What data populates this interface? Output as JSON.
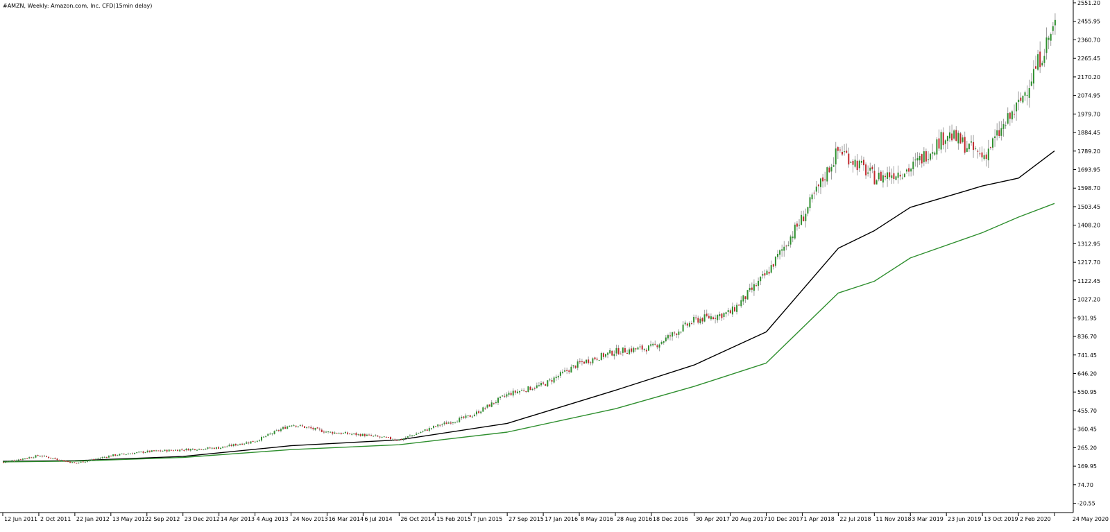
{
  "chart_data": {
    "type": "candlestick",
    "title": "#AMZN, Weekly:  Amazon.com, Inc. CFD(15min delay)",
    "xlabel": "",
    "ylabel": "",
    "ylim": [
      -68.5,
      2551.2
    ],
    "grid": false,
    "legend": "none",
    "y_ticks": [
      "2551.20",
      "2455.95",
      "2360.70",
      "2265.45",
      "2170.20",
      "2074.95",
      "1979.70",
      "1884.45",
      "1789.20",
      "1693.95",
      "1598.70",
      "1503.45",
      "1408.20",
      "1312.95",
      "1217.70",
      "1122.45",
      "1027.20",
      "931.95",
      "836.70",
      "741.45",
      "646.20",
      "550.95",
      "455.70",
      "360.45",
      "265.20",
      "169.95",
      "74.70",
      "-20.55"
    ],
    "x_ticks": [
      "12 Jun 2011",
      "2 Oct 2011",
      "22 Jan 2012",
      "13 May 2012",
      "2 Sep 2012",
      "23 Dec 2012",
      "14 Apr 2013",
      "4 Aug 2013",
      "24 Nov 2013",
      "16 Mar 2014",
      "6 Jul 2014",
      "26 Oct 2014",
      "15 Feb 2015",
      "7 Jun 2015",
      "27 Sep 2015",
      "17 Jan 2016",
      "8 May 2016",
      "28 Aug 2016",
      "18 Dec 2016",
      "30 Apr 2017",
      "20 Aug 2017",
      "10 Dec 2017",
      "1 Apr 2018",
      "22 Jul 2018",
      "11 Nov 2018",
      "3 Mar 2019",
      "23 Jun 2019",
      "13 Oct 2019",
      "2 Feb 2020",
      "24 May 2020"
    ],
    "price_path": [
      [
        "12 Jun 2011",
        190
      ],
      [
        "2 Oct 2011",
        225
      ],
      [
        "22 Jan 2012",
        185
      ],
      [
        "13 May 2012",
        225
      ],
      [
        "2 Sep 2012",
        245
      ],
      [
        "23 Dec 2012",
        255
      ],
      [
        "14 Apr 2013",
        265
      ],
      [
        "4 Aug 2013",
        300
      ],
      [
        "24 Nov 2013",
        385
      ],
      [
        "16 Mar 2014",
        345
      ],
      [
        "6 Jul 2014",
        330
      ],
      [
        "26 Oct 2014",
        305
      ],
      [
        "15 Feb 2015",
        375
      ],
      [
        "7 Jun 2015",
        430
      ],
      [
        "27 Sep 2015",
        540
      ],
      [
        "17 Jan 2016",
        590
      ],
      [
        "8 May 2016",
        700
      ],
      [
        "28 Aug 2016",
        760
      ],
      [
        "18 Dec 2016",
        780
      ],
      [
        "30 Apr 2017",
        920
      ],
      [
        "20 Aug 2017",
        960
      ],
      [
        "10 Dec 2017",
        1160
      ],
      [
        "1 Apr 2018",
        1450
      ],
      [
        "22 Jul 2018",
        1800
      ],
      [
        "11 Nov 2018",
        1650
      ],
      [
        "3 Mar 2019",
        1700
      ],
      [
        "23 Jun 2019",
        1880
      ],
      [
        "13 Oct 2019",
        1760
      ],
      [
        "2 Feb 2020",
        2030
      ],
      [
        "24 May 2020",
        2440
      ]
    ],
    "series": [
      {
        "name": "",
        "color": "#000000",
        "values": [
          [
            "12 Jun 2011",
            195
          ],
          [
            "22 Jan 2012",
            198
          ],
          [
            "23 Dec 2012",
            220
          ],
          [
            "24 Nov 2013",
            275
          ],
          [
            "26 Oct 2014",
            305
          ],
          [
            "27 Sep 2015",
            390
          ],
          [
            "28 Aug 2016",
            560
          ],
          [
            "30 Apr 2017",
            690
          ],
          [
            "10 Dec 2017",
            860
          ],
          [
            "22 Jul 2018",
            1290
          ],
          [
            "11 Nov 2018",
            1380
          ],
          [
            "3 Mar 2019",
            1500
          ],
          [
            "13 Oct 2019",
            1610
          ],
          [
            "2 Feb 2020",
            1650
          ],
          [
            "24 May 2020",
            1790
          ]
        ]
      },
      {
        "name": "",
        "color": "#2f8f2f",
        "values": [
          [
            "12 Jun 2011",
            192
          ],
          [
            "22 Jan 2012",
            196
          ],
          [
            "23 Dec 2012",
            215
          ],
          [
            "24 Nov 2013",
            255
          ],
          [
            "26 Oct 2014",
            280
          ],
          [
            "27 Sep 2015",
            345
          ],
          [
            "28 Aug 2016",
            465
          ],
          [
            "30 Apr 2017",
            580
          ],
          [
            "10 Dec 2017",
            700
          ],
          [
            "22 Jul 2018",
            1060
          ],
          [
            "11 Nov 2018",
            1120
          ],
          [
            "3 Mar 2019",
            1240
          ],
          [
            "13 Oct 2019",
            1370
          ],
          [
            "2 Feb 2020",
            1450
          ],
          [
            "24 May 2020",
            1520
          ]
        ]
      }
    ]
  },
  "colors": {
    "bull_candle": "#2f8f2f",
    "bear_candle": "#c0282d",
    "wick": "#9e9e9e",
    "axis": "#000000"
  }
}
